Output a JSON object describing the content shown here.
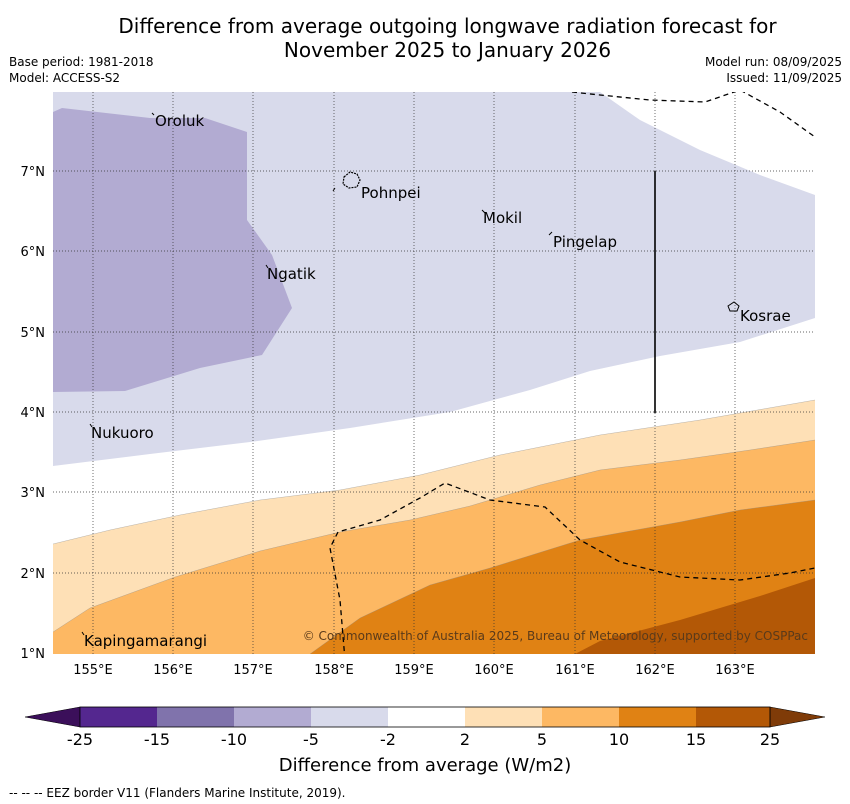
{
  "title_line1": "Difference from average outgoing longwave radiation forecast for",
  "title_line2": "November 2025 to January 2026",
  "base_period": "Base period: 1981-2018",
  "model": "Model: ACCESS-S2",
  "model_run": "Model run: 08/09/2025",
  "issued": "Issued: 11/09/2025",
  "copyright": "© Commonwealth of Australia 2025, Bureau of Meteorology, supported by COSPPac",
  "colorbar_title": "Difference from average (W/m2)",
  "footer": "--  --  -- EEZ border V11 (Flanders Marine Institute, 2019).",
  "lon_ticks": [
    "155°E",
    "156°E",
    "157°E",
    "158°E",
    "159°E",
    "160°E",
    "161°E",
    "162°E",
    "163°E"
  ],
  "lat_ticks": [
    "1°N",
    "2°N",
    "3°N",
    "4°N",
    "5°N",
    "6°N",
    "7°N"
  ],
  "places": [
    "Oroluk",
    "Pohnpei",
    "Mokil",
    "Pingelap",
    "Ngatik",
    "Kosrae",
    "Nukuoro",
    "Kapingamarangi"
  ],
  "colorbar_labels": [
    "-25",
    "-15",
    "-10",
    "-5",
    "-2",
    "2",
    "5",
    "10",
    "15",
    "25"
  ],
  "colorbar_colors": [
    "#3b0f5a",
    "#54278f",
    "#8073ac",
    "#b2abd2",
    "#d8daeb",
    "#ffffff",
    "#fee0b6",
    "#fdb863",
    "#e08214",
    "#b35806",
    "#7f3b08"
  ]
}
